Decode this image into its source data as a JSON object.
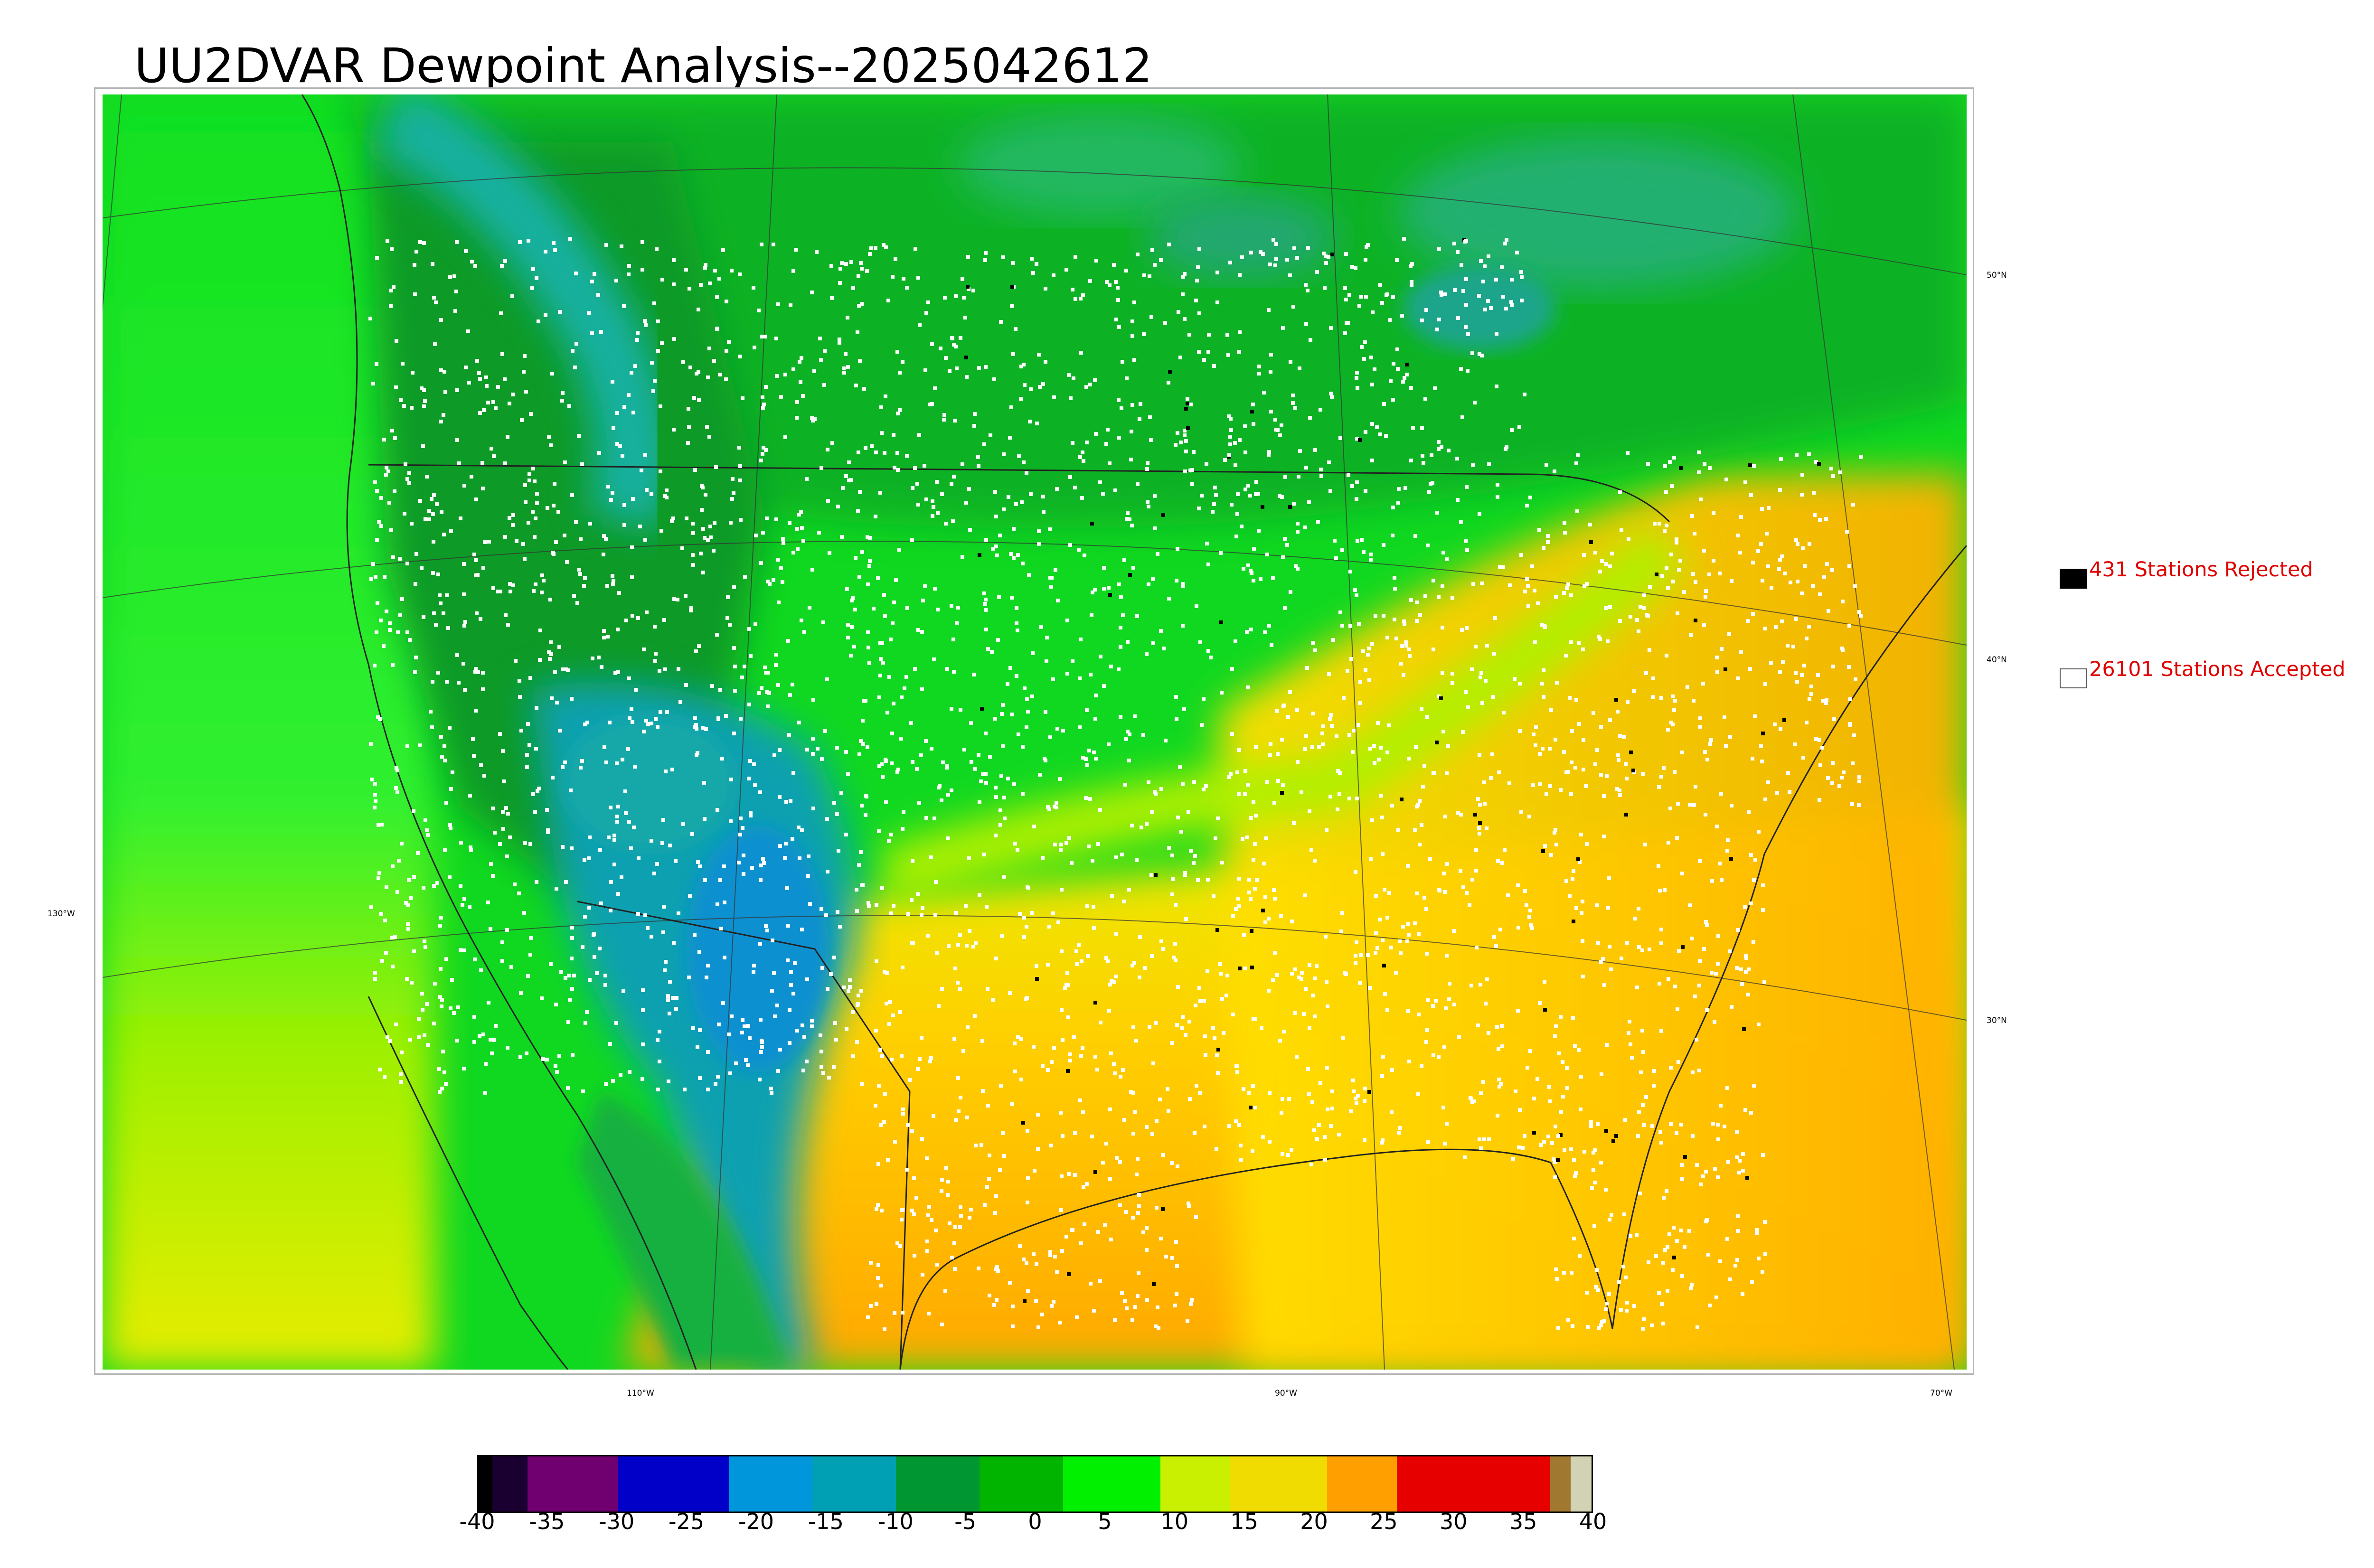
{
  "title": "UU2DVAR Dewpoint Analysis--2025042612",
  "map": {
    "lat_labels": [
      "50°N",
      "40°N",
      "30°N"
    ],
    "lon_labels": [
      "130°W",
      "110°W",
      "90°W",
      "70°W"
    ],
    "field": "dewpoint",
    "colors": {
      "dry": "#0aa0b0",
      "cool_green": "#0b8f1a",
      "green": "#10d820",
      "bright_green": "#20ff20",
      "yellow": "#e8f000",
      "orange": "#ffb400",
      "station_accepted": "#ffffff",
      "station_rejected": "#000000"
    }
  },
  "legend": {
    "rejected": {
      "label": "431 Stations Rejected",
      "count": 431,
      "color": "#000000",
      "text_color": "#e00000"
    },
    "accepted": {
      "label": "26101 Stations Accepted",
      "count": 26101,
      "color": "#ffffff",
      "text_color": "#e00000"
    }
  },
  "colorbar": {
    "ticks": [
      "-40",
      "-35",
      "-30",
      "-25",
      "-20",
      "-15",
      "-10",
      "-5",
      "0",
      "5",
      "10",
      "15",
      "20",
      "25",
      "30",
      "35",
      "40"
    ],
    "min": -40,
    "max": 40,
    "segments": [
      {
        "from": -40,
        "to": -39,
        "color": "#000000"
      },
      {
        "from": -39,
        "to": -36.5,
        "color": "#1a0030"
      },
      {
        "from": -36.5,
        "to": -30,
        "color": "#700070"
      },
      {
        "from": -30,
        "to": -22,
        "color": "#0000c8"
      },
      {
        "from": -22,
        "to": -16,
        "color": "#0096dc"
      },
      {
        "from": -16,
        "to": -10,
        "color": "#00a0b4"
      },
      {
        "from": -10,
        "to": -4,
        "color": "#009632"
      },
      {
        "from": -4,
        "to": 2,
        "color": "#00b400"
      },
      {
        "from": 2,
        "to": 9,
        "color": "#00f000"
      },
      {
        "from": 9,
        "to": 14,
        "color": "#c8f000"
      },
      {
        "from": 14,
        "to": 21,
        "color": "#f0dc00"
      },
      {
        "from": 21,
        "to": 26,
        "color": "#ffa000"
      },
      {
        "from": 26,
        "to": 37,
        "color": "#e60000"
      },
      {
        "from": 37,
        "to": 38.5,
        "color": "#a07830"
      },
      {
        "from": 38.5,
        "to": 40,
        "color": "#d2d2b4"
      }
    ]
  }
}
